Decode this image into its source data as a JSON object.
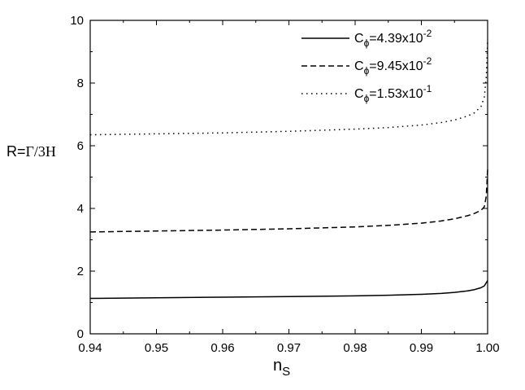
{
  "chart_data": {
    "type": "line",
    "xlabel": "n",
    "xlabel_sub": "S",
    "ylabel": "R=",
    "ylabel_math": "Γ/3H",
    "xlim": [
      0.94,
      1.0
    ],
    "ylim": [
      0,
      10
    ],
    "xticks": [
      0.94,
      0.95,
      0.96,
      0.97,
      0.98,
      0.99,
      1.0
    ],
    "xtick_labels": [
      "0.94",
      "0.95",
      "0.96",
      "0.97",
      "0.98",
      "0.99",
      "1.00"
    ],
    "yticks": [
      0,
      2,
      4,
      6,
      8,
      10
    ],
    "ytick_labels": [
      "0",
      "2",
      "4",
      "6",
      "8",
      "10"
    ],
    "grid": false,
    "legend_position": "top-right",
    "series": [
      {
        "name": "C",
        "legend": {
          "base": "C",
          "sub": "ϕ",
          "mant": "=4.39x10",
          "exp": "-2"
        },
        "style": "solid",
        "x": [
          0.94,
          0.95,
          0.96,
          0.97,
          0.98,
          0.985,
          0.99,
          0.993,
          0.995,
          0.997,
          0.998,
          0.999,
          0.9995,
          1.0
        ],
        "y": [
          1.13,
          1.15,
          1.17,
          1.19,
          1.21,
          1.23,
          1.26,
          1.29,
          1.32,
          1.37,
          1.41,
          1.47,
          1.53,
          1.7
        ]
      },
      {
        "name": "C",
        "legend": {
          "base": "C",
          "sub": "ϕ",
          "mant": "=9.45x10",
          "exp": "-2"
        },
        "style": "dashed",
        "x": [
          0.94,
          0.95,
          0.96,
          0.97,
          0.98,
          0.985,
          0.99,
          0.993,
          0.995,
          0.997,
          0.998,
          0.999,
          0.9995,
          0.9998,
          1.0
        ],
        "y": [
          3.25,
          3.28,
          3.31,
          3.35,
          3.41,
          3.46,
          3.53,
          3.6,
          3.67,
          3.77,
          3.84,
          3.94,
          4.05,
          4.4,
          5.25
        ]
      },
      {
        "name": "C",
        "legend": {
          "base": "C",
          "sub": "ϕ",
          "mant": "=1.53x10",
          "exp": "-1"
        },
        "style": "dotted",
        "x": [
          0.94,
          0.95,
          0.96,
          0.97,
          0.98,
          0.985,
          0.99,
          0.993,
          0.995,
          0.997,
          0.998,
          0.999,
          0.9995,
          0.9998,
          1.0
        ],
        "y": [
          6.35,
          6.38,
          6.41,
          6.46,
          6.53,
          6.58,
          6.66,
          6.74,
          6.82,
          6.95,
          7.05,
          7.25,
          7.55,
          8.2,
          9.35
        ]
      }
    ]
  }
}
